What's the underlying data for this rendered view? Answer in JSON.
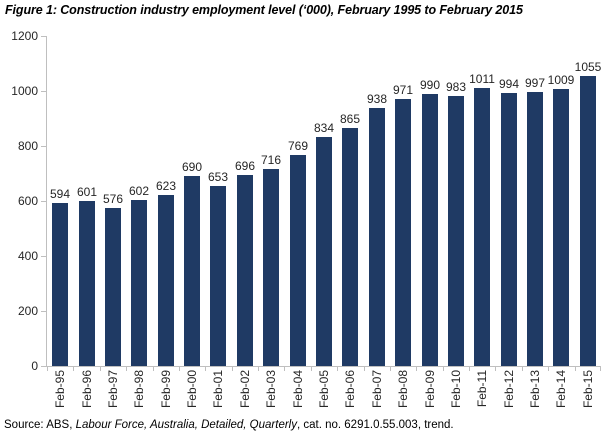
{
  "figure_title": "Figure 1: Construction industry employment level (‘000), February 1995 to February 2015",
  "source": {
    "prefix": "Source: ABS, ",
    "italic": "Labour Force, Australia, Detailed, Quarterly",
    "suffix": ", cat. no. 6291.0.55.003, trend."
  },
  "colors": {
    "bar": "#1F3A64",
    "axis": "#BFBFBF",
    "tick_text": "#262626",
    "title_text": "#000000"
  },
  "chart_data": {
    "type": "bar",
    "title": "Figure 1: Construction industry employment level (‘000), February 1995 to February 2015",
    "categories": [
      "Feb-95",
      "Feb-96",
      "Feb-97",
      "Feb-98",
      "Feb-99",
      "Feb-00",
      "Feb-01",
      "Feb-02",
      "Feb-03",
      "Feb-04",
      "Feb-05",
      "Feb-06",
      "Feb-07",
      "Feb-08",
      "Feb-09",
      "Feb-10",
      "Feb-11",
      "Feb-12",
      "Feb-13",
      "Feb-14",
      "Feb-15"
    ],
    "values": [
      594,
      601,
      576,
      602,
      623,
      690,
      653,
      696,
      716,
      769,
      834,
      865,
      938,
      971,
      990,
      983,
      1011,
      994,
      997,
      1009,
      1055
    ],
    "xlabel": "",
    "ylabel": "",
    "ylim": [
      0,
      1200
    ],
    "yticks": [
      0,
      200,
      400,
      600,
      800,
      1000,
      1200
    ],
    "data_labels": true,
    "grid": false,
    "legend": false,
    "bar_color": "#1F3A64"
  }
}
